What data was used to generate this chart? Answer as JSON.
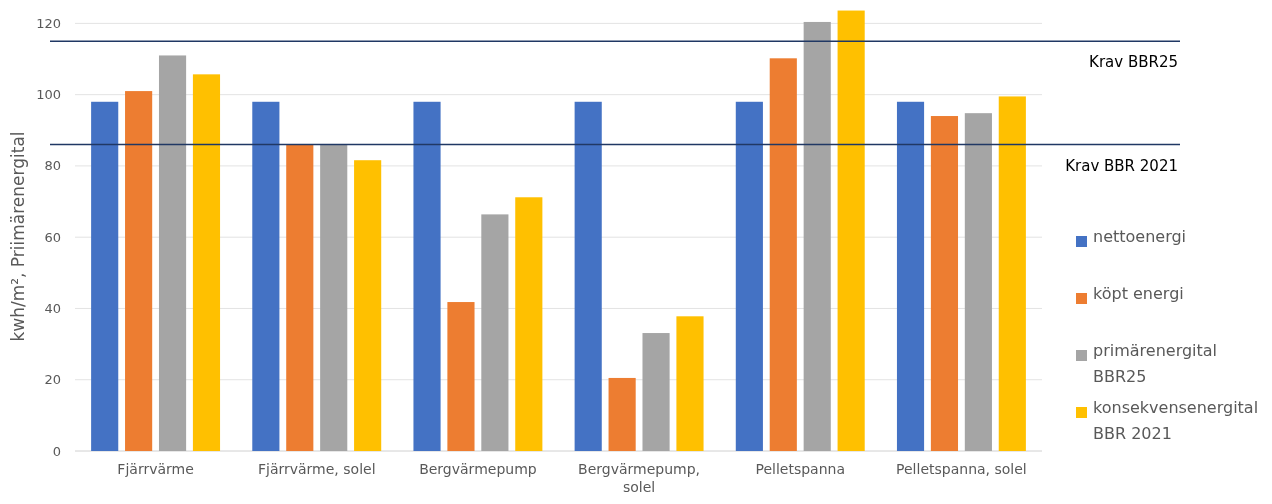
{
  "chart_data": {
    "type": "bar",
    "ylabel": "kwh/m², Priimärenergital",
    "categories": [
      "Fjärrvärme",
      "Fjärrvärme, solel",
      "Bergvärmepump",
      "Bergvärmepump, solel",
      "Pelletspanna",
      "Pelletspanna, solel"
    ],
    "series": [
      {
        "name": "nettoenergi",
        "color": "#4472c4",
        "values": [
          98,
          98,
          98,
          98,
          98,
          98
        ]
      },
      {
        "name": "köpt energi",
        "color": "#ed7d31",
        "values": [
          101,
          86,
          41.8,
          20.5,
          110.2,
          94
        ]
      },
      {
        "name": "primärenergital BBR25",
        "color": "#a5a5a5",
        "values": [
          111,
          86,
          66.4,
          33.1,
          120.4,
          94.8
        ]
      },
      {
        "name": "konsekvensenergital BBR 2021",
        "color": "#ffc000",
        "values": [
          105.7,
          81.6,
          71.2,
          37.8,
          123.6,
          99.5
        ]
      }
    ],
    "ylim": [
      0,
      126
    ],
    "yticks": [
      0,
      20,
      40,
      60,
      80,
      100,
      120
    ],
    "grid": "y",
    "legend": "right",
    "ref_lines": [
      {
        "axis": "y",
        "value": 115,
        "label": "Krav BBR25",
        "color": "#203864"
      },
      {
        "axis": "y",
        "value": 86,
        "label": "Krav BBR 2021",
        "color": "#203864"
      }
    ]
  }
}
